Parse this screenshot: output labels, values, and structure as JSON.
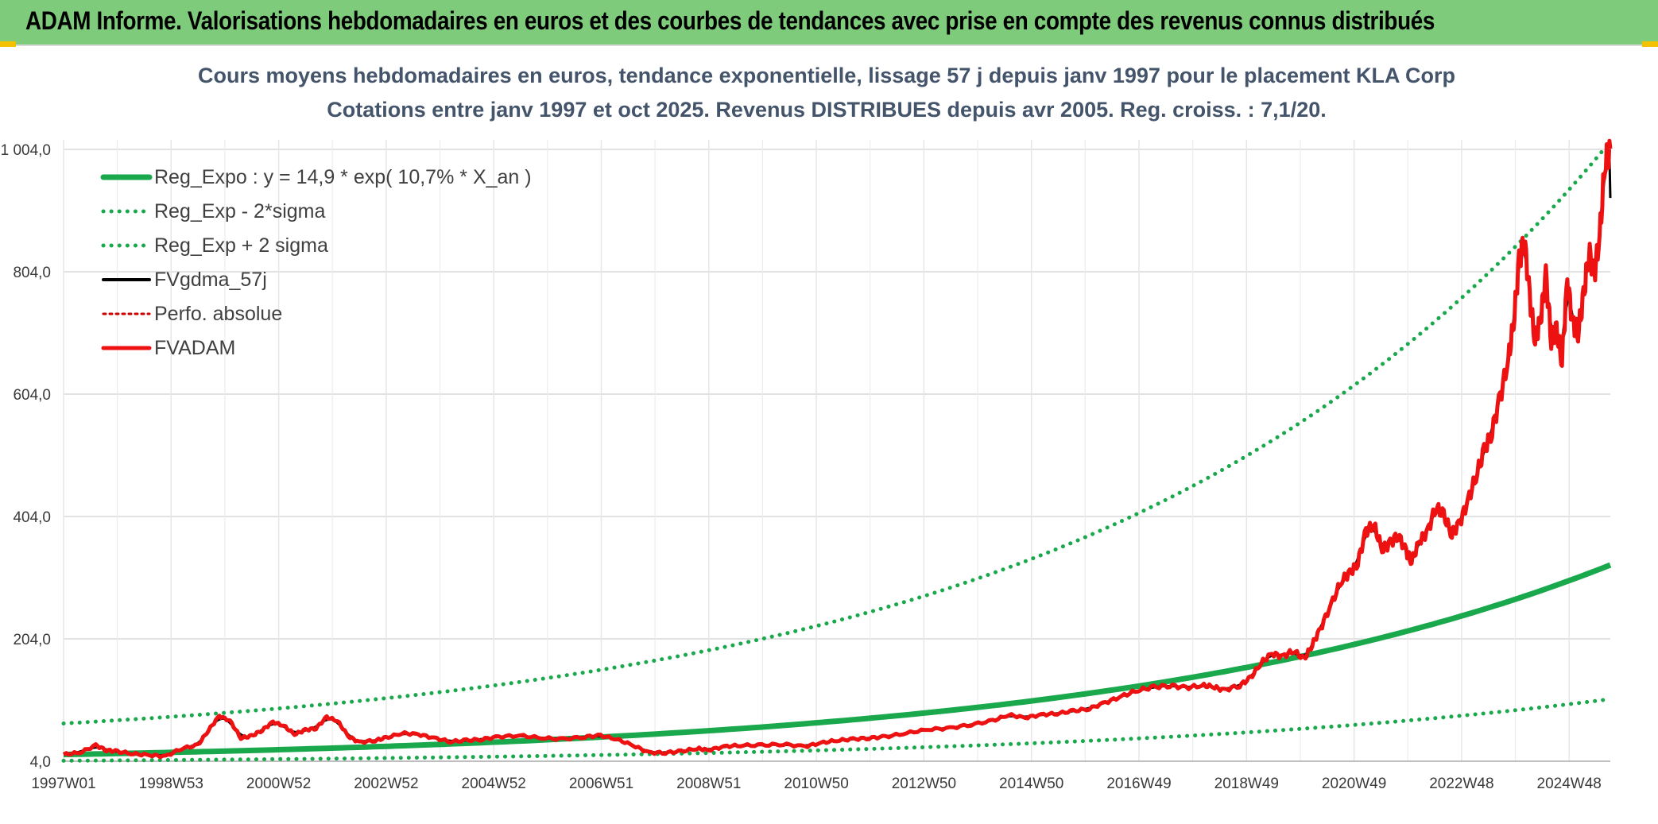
{
  "banner": {
    "title": "ADAM Informe. Valorisations hebdomadaires en euros et des courbes de tendances avec prise en compte des revenus connus distribués"
  },
  "colors": {
    "banner_bg": "#7ecb7b",
    "trend": "#1aa84c",
    "gdma": "#000000",
    "adam": "#ee1111",
    "perfo": "#cc0000"
  },
  "chart_data": {
    "type": "line",
    "title": "Cours moyens hebdomadaires en euros, tendance exponentielle, lissage 57 j depuis janv 1997 pour le placement KLA Corp",
    "subtitle": "Cotations entre janv 1997 et oct 2025. Revenus DISTRIBUES depuis avr 2005. Reg. croiss. : 7,1/20.",
    "xlabel": "",
    "ylabel": "",
    "ylim": [
      4.0,
      1004.0
    ],
    "y_ticks": [
      "4,0",
      "204,0",
      "404,0",
      "604,0",
      "804,0",
      "1 004,0"
    ],
    "x_ticks": [
      "1997W01",
      "1998W53",
      "2000W52",
      "2002W52",
      "2004W52",
      "2006W51",
      "2008W51",
      "2010W50",
      "2012W50",
      "2014W50",
      "2016W49",
      "2018W49",
      "2020W49",
      "2022W48",
      "2024W48"
    ],
    "legend": [
      {
        "key": "reg_expo",
        "label": "Reg_Expo : y = 14,9 * exp( 10,7% *  X_an )"
      },
      {
        "key": "reg_minus",
        "label": "Reg_Exp - 2*sigma"
      },
      {
        "key": "reg_plus",
        "label": "Reg_Exp + 2 sigma"
      },
      {
        "key": "gdma",
        "label": "FVgdma_57j"
      },
      {
        "key": "perfo",
        "label": "Perfo. absolue"
      },
      {
        "key": "adam",
        "label": "FVADAM"
      }
    ],
    "trend_model": {
      "a": 14.9,
      "rate": 0.107,
      "sigma_factor_plus": 3.07,
      "sigma_factor_minus": 0.325,
      "x_start": 1997.0,
      "x_end": 2025.8
    },
    "series": [
      {
        "name": "FVADAM",
        "x": [
          1997.0,
          1997.3,
          1997.6,
          1997.8,
          1998.0,
          1998.3,
          1998.6,
          1998.9,
          1999.2,
          1999.5,
          1999.7,
          1999.9,
          2000.1,
          2000.3,
          2000.5,
          2000.7,
          2000.9,
          2001.1,
          2001.3,
          2001.5,
          2001.7,
          2001.9,
          2002.1,
          2002.3,
          2002.5,
          2002.8,
          2003.0,
          2003.3,
          2003.6,
          2003.9,
          2004.2,
          2004.5,
          2004.8,
          2005.1,
          2005.5,
          2005.9,
          2006.3,
          2006.7,
          2007.0,
          2007.3,
          2007.6,
          2007.9,
          2008.2,
          2008.5,
          2008.8,
          2009.0,
          2009.3,
          2009.6,
          2010.0,
          2010.4,
          2010.8,
          2011.1,
          2011.4,
          2011.7,
          2012.0,
          2012.3,
          2012.7,
          2013.1,
          2013.5,
          2013.9,
          2014.3,
          2014.6,
          2014.9,
          2015.2,
          2015.5,
          2015.8,
          2016.1,
          2016.4,
          2016.7,
          2017.0,
          2017.3,
          2017.6,
          2017.9,
          2018.2,
          2018.4,
          2018.6,
          2018.9,
          2019.1,
          2019.3,
          2019.5,
          2019.7,
          2019.9,
          2020.1,
          2020.25,
          2020.4,
          2020.6,
          2020.8,
          2020.95,
          2021.1,
          2021.25,
          2021.4,
          2021.55,
          2021.7,
          2021.85,
          2022.0,
          2022.1,
          2022.25,
          2022.4,
          2022.55,
          2022.7,
          2022.85,
          2023.0,
          2023.15,
          2023.3,
          2023.45,
          2023.6,
          2023.75,
          2023.9,
          2024.0,
          2024.1,
          2024.2,
          2024.3,
          2024.4,
          2024.5,
          2024.6,
          2024.7,
          2024.8,
          2024.9,
          2025.0,
          2025.1,
          2025.2,
          2025.3,
          2025.4,
          2025.5,
          2025.6,
          2025.7,
          2025.8
        ],
        "values": [
          15,
          18,
          30,
          22,
          20,
          16,
          14,
          12,
          25,
          30,
          55,
          78,
          70,
          42,
          45,
          55,
          68,
          62,
          48,
          55,
          58,
          76,
          70,
          45,
          35,
          38,
          42,
          50,
          48,
          42,
          36,
          38,
          40,
          44,
          46,
          42,
          40,
          44,
          46,
          40,
          30,
          18,
          18,
          20,
          25,
          22,
          28,
          30,
          30,
          32,
          28,
          34,
          38,
          40,
          42,
          44,
          50,
          56,
          58,
          64,
          70,
          80,
          75,
          80,
          82,
          86,
          90,
          100,
          110,
          120,
          125,
          128,
          124,
          128,
          126,
          120,
          128,
          140,
          165,
          180,
          175,
          185,
          170,
          195,
          220,
          260,
          300,
          310,
          330,
          380,
          390,
          350,
          360,
          375,
          345,
          330,
          365,
          380,
          420,
          405,
          375,
          395,
          430,
          470,
          510,
          545,
          600,
          660,
          720,
          820,
          860,
          760,
          690,
          725,
          800,
          695,
          705,
          660,
          790,
          720,
          705,
          760,
          840,
          800,
          860,
          980,
          1005
        ]
      }
    ]
  }
}
